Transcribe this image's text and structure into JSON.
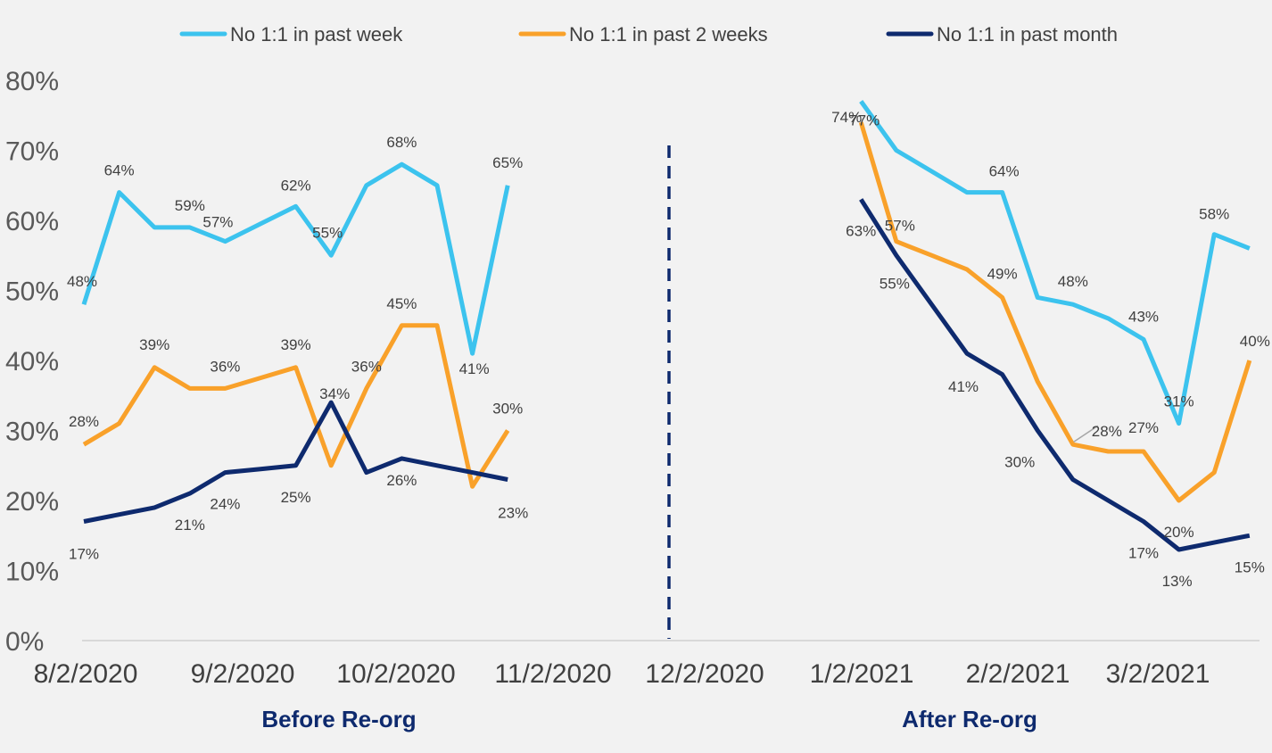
{
  "chart_data": {
    "type": "line",
    "title": "",
    "xlabel": "",
    "ylabel": "",
    "ylim": [
      0,
      0.8
    ],
    "y_ticks": [
      "0%",
      "10%",
      "20%",
      "30%",
      "40%",
      "50%",
      "60%",
      "70%",
      "80%"
    ],
    "x_ticks": [
      "8/2/2020",
      "9/2/2020",
      "10/2/2020",
      "11/2/2020",
      "12/2/2020",
      "1/2/2021",
      "2/2/2021",
      "3/2/2021"
    ],
    "x_axis_unit": "weeks from 8/2/2020",
    "x_range": [
      0,
      34
    ],
    "legend_position": "top",
    "divider": {
      "x": 17,
      "style": "dashed"
    },
    "sections": [
      {
        "label": "Before Re-org",
        "x": 7.3
      },
      {
        "label": "After Re-org",
        "x": 25.3
      }
    ],
    "series": [
      {
        "name": "No 1:1 in past week",
        "color": "#3cc3ee",
        "segments": [
          {
            "points": [
              [
                0,
                0.48
              ],
              [
                1,
                0.64
              ],
              [
                2,
                0.59
              ],
              [
                3,
                0.59
              ],
              [
                4,
                0.57
              ],
              [
                5,
                0.595
              ],
              [
                6,
                0.62
              ],
              [
                7,
                0.55
              ],
              [
                8,
                0.65
              ],
              [
                9,
                0.68
              ],
              [
                10,
                0.65
              ],
              [
                11,
                0.41
              ],
              [
                12,
                0.65
              ]
            ]
          },
          {
            "points": [
              [
                22,
                0.77
              ],
              [
                23,
                0.7
              ],
              [
                24,
                0.67
              ],
              [
                25,
                0.64
              ],
              [
                26,
                0.64
              ],
              [
                27,
                0.49
              ],
              [
                28,
                0.48
              ],
              [
                29,
                0.46
              ],
              [
                30,
                0.43
              ],
              [
                31,
                0.31
              ],
              [
                32,
                0.58
              ],
              [
                33,
                0.56
              ]
            ]
          }
        ],
        "labels": [
          {
            "x": 0,
            "y": 0.48,
            "text": "48%"
          },
          {
            "x": 1,
            "y": 0.64,
            "text": "64%"
          },
          {
            "x": 3,
            "y": 0.59,
            "text": "59%"
          },
          {
            "x": 4,
            "y": 0.57,
            "text": "57%"
          },
          {
            "x": 6,
            "y": 0.62,
            "text": "62%"
          },
          {
            "x": 7,
            "y": 0.55,
            "text": "55%"
          },
          {
            "x": 9,
            "y": 0.68,
            "text": "68%"
          },
          {
            "x": 11,
            "y": 0.41,
            "text": "41%"
          },
          {
            "x": 12,
            "y": 0.65,
            "text": "65%"
          },
          {
            "x": 22,
            "y": 0.77,
            "text": "77%"
          },
          {
            "x": 26,
            "y": 0.64,
            "text": "64%"
          },
          {
            "x": 28,
            "y": 0.48,
            "text": "48%"
          },
          {
            "x": 30,
            "y": 0.43,
            "text": "43%"
          },
          {
            "x": 31,
            "y": 0.31,
            "text": "31%"
          },
          {
            "x": 32,
            "y": 0.58,
            "text": "58%"
          }
        ]
      },
      {
        "name": "No 1:1 in past 2 weeks",
        "color": "#f9a12a",
        "segments": [
          {
            "points": [
              [
                0,
                0.28
              ],
              [
                1,
                0.31
              ],
              [
                2,
                0.39
              ],
              [
                3,
                0.36
              ],
              [
                4,
                0.36
              ],
              [
                5,
                0.375
              ],
              [
                6,
                0.39
              ],
              [
                7,
                0.25
              ],
              [
                8,
                0.36
              ],
              [
                9,
                0.45
              ],
              [
                10,
                0.45
              ],
              [
                11,
                0.22
              ],
              [
                12,
                0.3
              ]
            ]
          },
          {
            "points": [
              [
                22,
                0.74
              ],
              [
                23,
                0.57
              ],
              [
                24,
                0.55
              ],
              [
                25,
                0.53
              ],
              [
                26,
                0.49
              ],
              [
                27,
                0.37
              ],
              [
                28,
                0.28
              ],
              [
                29,
                0.27
              ],
              [
                30,
                0.27
              ],
              [
                31,
                0.2
              ],
              [
                32,
                0.24
              ],
              [
                33,
                0.4
              ]
            ]
          }
        ],
        "labels": [
          {
            "x": 0,
            "y": 0.28,
            "text": "28%"
          },
          {
            "x": 2,
            "y": 0.39,
            "text": "39%"
          },
          {
            "x": 4,
            "y": 0.36,
            "text": "36%"
          },
          {
            "x": 6,
            "y": 0.39,
            "text": "39%"
          },
          {
            "x": 8,
            "y": 0.36,
            "text": "36%"
          },
          {
            "x": 9,
            "y": 0.45,
            "text": "45%"
          },
          {
            "x": 12,
            "y": 0.3,
            "text": "30%"
          },
          {
            "x": 22,
            "y": 0.74,
            "text": "74%"
          },
          {
            "x": 23,
            "y": 0.57,
            "text": "57%"
          },
          {
            "x": 26,
            "y": 0.49,
            "text": "49%"
          },
          {
            "x": 28,
            "y": 0.28,
            "text": "28%"
          },
          {
            "x": 30,
            "y": 0.27,
            "text": "27%"
          },
          {
            "x": 31,
            "y": 0.2,
            "text": "20%"
          },
          {
            "x": 33,
            "y": 0.4,
            "text": "40%"
          }
        ]
      },
      {
        "name": "No 1:1 in past month",
        "color": "#0e2a6e",
        "segments": [
          {
            "points": [
              [
                0,
                0.17
              ],
              [
                1,
                0.18
              ],
              [
                2,
                0.19
              ],
              [
                3,
                0.21
              ],
              [
                4,
                0.24
              ],
              [
                5,
                0.245
              ],
              [
                6,
                0.25
              ],
              [
                7,
                0.34
              ],
              [
                8,
                0.24
              ],
              [
                9,
                0.26
              ],
              [
                10,
                0.25
              ],
              [
                11,
                0.24
              ],
              [
                12,
                0.23
              ]
            ]
          },
          {
            "points": [
              [
                22,
                0.63
              ],
              [
                23,
                0.55
              ],
              [
                24,
                0.48
              ],
              [
                25,
                0.41
              ],
              [
                26,
                0.38
              ],
              [
                27,
                0.3
              ],
              [
                28,
                0.23
              ],
              [
                29,
                0.2
              ],
              [
                30,
                0.17
              ],
              [
                31,
                0.13
              ],
              [
                32,
                0.14
              ],
              [
                33,
                0.15
              ]
            ]
          }
        ],
        "labels": [
          {
            "x": 0,
            "y": 0.17,
            "text": "17%"
          },
          {
            "x": 3,
            "y": 0.21,
            "text": "21%"
          },
          {
            "x": 4,
            "y": 0.24,
            "text": "24%"
          },
          {
            "x": 6,
            "y": 0.25,
            "text": "25%"
          },
          {
            "x": 7,
            "y": 0.34,
            "text": "34%"
          },
          {
            "x": 9,
            "y": 0.26,
            "text": "26%"
          },
          {
            "x": 12,
            "y": 0.23,
            "text": "23%"
          },
          {
            "x": 22,
            "y": 0.63,
            "text": "63%"
          },
          {
            "x": 23,
            "y": 0.55,
            "text": "55%"
          },
          {
            "x": 25,
            "y": 0.41,
            "text": "41%"
          },
          {
            "x": 27,
            "y": 0.3,
            "text": "30%"
          },
          {
            "x": 30,
            "y": 0.17,
            "text": "17%"
          },
          {
            "x": 31,
            "y": 0.13,
            "text": "13%"
          },
          {
            "x": 33,
            "y": 0.15,
            "text": "15%"
          }
        ]
      }
    ]
  }
}
